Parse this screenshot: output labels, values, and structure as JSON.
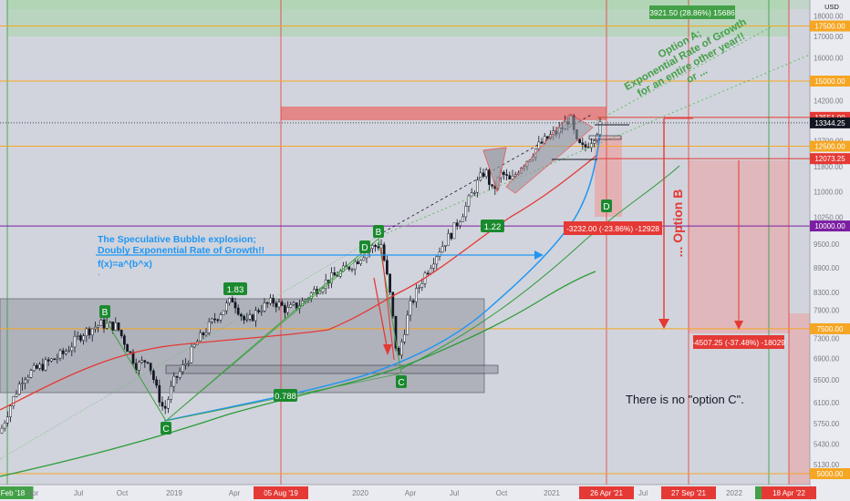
{
  "chart_data": {
    "type": "candlestick",
    "symbol_scale": "log",
    "currency": "USD",
    "x_axis": {
      "ticks": [
        "Feb '18",
        "Apr",
        "Jul",
        "Oct",
        "2019",
        "Apr",
        "May",
        "05 Aug '19",
        "2020",
        "Apr",
        "Jul",
        "Oct",
        "2021",
        "26 Apr '21",
        "Jul",
        "27 Sep '21",
        "2022",
        "14 M",
        "18 Apr '22"
      ],
      "highlighted": [
        "Feb '18",
        "05 Aug '19",
        "26 Apr '21",
        "27 Sep '21",
        "14 M",
        "18 Apr '22"
      ]
    },
    "y_axis": {
      "ticks": [
        18000,
        17000,
        16000,
        14200,
        13400,
        12700,
        11800,
        11000,
        10250,
        9500,
        8900,
        8300,
        7900,
        7300,
        6900,
        6500,
        6100,
        5750,
        5430,
        5130,
        4850
      ],
      "tick_labels": [
        "18000.00",
        "17000.00",
        "16000.00",
        "14200.00",
        "13400.00",
        "12700.00",
        "11800.00",
        "11000.00",
        "10250.00",
        "9500.00",
        "8900.00",
        "8300.00",
        "7900.00",
        "7300.00",
        "6900.00",
        "6500.00",
        "6100.00",
        "5750.00",
        "5430.00",
        "5130.00",
        "4850.00"
      ],
      "unit_label": "USD",
      "range": [
        4700,
        19000
      ]
    },
    "price_labels": [
      {
        "value": 17500,
        "text": "17500.00",
        "color": "#f5a623"
      },
      {
        "value": 15000,
        "text": "15000.00",
        "color": "#f5a623"
      },
      {
        "value": 13551,
        "text": "13551.00",
        "color": "#e53935"
      },
      {
        "value": 13344.25,
        "text": "13344.25",
        "color": "#131722"
      },
      {
        "value": 12500,
        "text": "12500.00",
        "color": "#f5a623"
      },
      {
        "value": 12073.25,
        "text": "12073.25",
        "color": "#e53935"
      },
      {
        "value": 10000,
        "text": "10000.00",
        "color": "#7b1fa2"
      },
      {
        "value": 7500,
        "text": "7500.00",
        "color": "#f5a623"
      },
      {
        "value": 5000,
        "text": "5000.00",
        "color": "#f5a623"
      }
    ],
    "horizontal_levels": [
      {
        "value": 17500,
        "color": "#f5a623"
      },
      {
        "value": 15000,
        "color": "#f5a623"
      },
      {
        "value": 12500,
        "color": "#f5a623"
      },
      {
        "value": 10000,
        "color": "#7b1fa2"
      },
      {
        "value": 7500,
        "color": "#f5a623"
      },
      {
        "value": 5000,
        "color": "#f5a623"
      }
    ],
    "measure_labels": [
      {
        "text": "3921.50 (28.86%) 15686",
        "color": "#43a047"
      },
      {
        "text": "-3232.00 (-23.86%) -12928",
        "color": "#e53935"
      },
      {
        "text": "-4507.25 (-37.48%) -18029",
        "color": "#e53935"
      }
    ],
    "pattern_labels": [
      "B",
      "D",
      "C",
      "B",
      "D",
      "C",
      "D"
    ],
    "ratio_labels": [
      "1.83",
      "0.788",
      "1.22"
    ],
    "annotations": {
      "bubble_title": "The Speculative Bubble explosion;",
      "bubble_subtitle": "Doubly Exponential Rate of Growth!!",
      "formula": "f(x)=a^(b^x)",
      "dot": ".",
      "option_a": [
        "Option A;",
        "Exponential Rate of Growth",
        "for an entire other year!!",
        "or ..."
      ],
      "option_b": "... Option B",
      "no_option_c": "There is no \"option C\"."
    },
    "colors": {
      "up": "#ffffff",
      "down": "#131722",
      "ma_red": "#e53935",
      "ma_blue": "#2196f3",
      "ma_green": "#2e9b3a",
      "green_zone": "#a5d6a7",
      "red_zone": "#ef9a9a"
    }
  }
}
